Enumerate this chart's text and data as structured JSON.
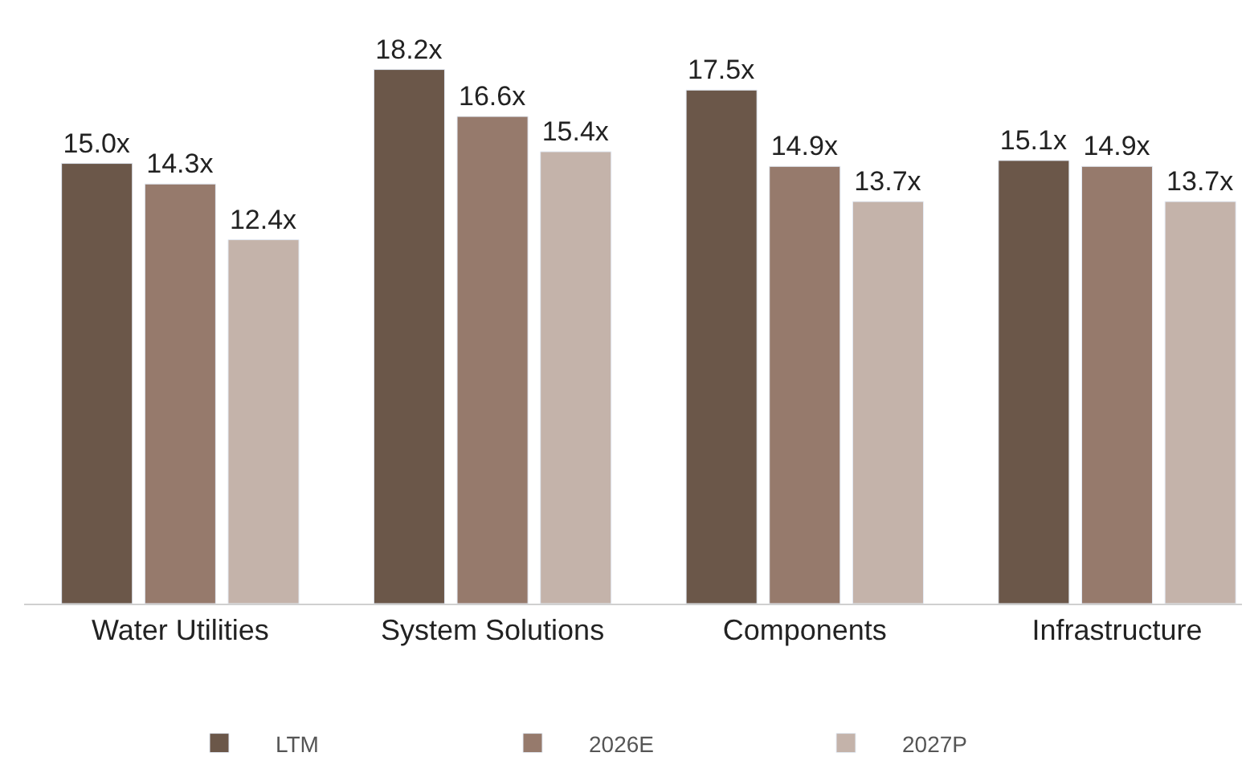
{
  "chart_data": {
    "type": "bar",
    "categories": [
      "Water Utilities",
      "System Solutions",
      "Components",
      "Infrastructure"
    ],
    "series": [
      {
        "name": "LTM",
        "color": "#6b5749",
        "values": [
          15.0,
          18.2,
          17.5,
          15.1
        ],
        "value_labels": [
          "15.0x",
          "18.2x",
          "17.5x",
          "15.1x"
        ]
      },
      {
        "name": "2026E",
        "color": "#967a6c",
        "values": [
          14.3,
          16.6,
          14.9,
          14.9
        ],
        "value_labels": [
          "14.3x",
          "16.6x",
          "14.9x",
          "14.9x"
        ]
      },
      {
        "name": "2027P",
        "color": "#c4b3aa",
        "values": [
          12.4,
          15.4,
          13.7,
          13.7
        ],
        "value_labels": [
          "12.4x",
          "15.4x",
          "13.7x",
          "13.7x"
        ]
      }
    ],
    "legend": "bottom"
  }
}
